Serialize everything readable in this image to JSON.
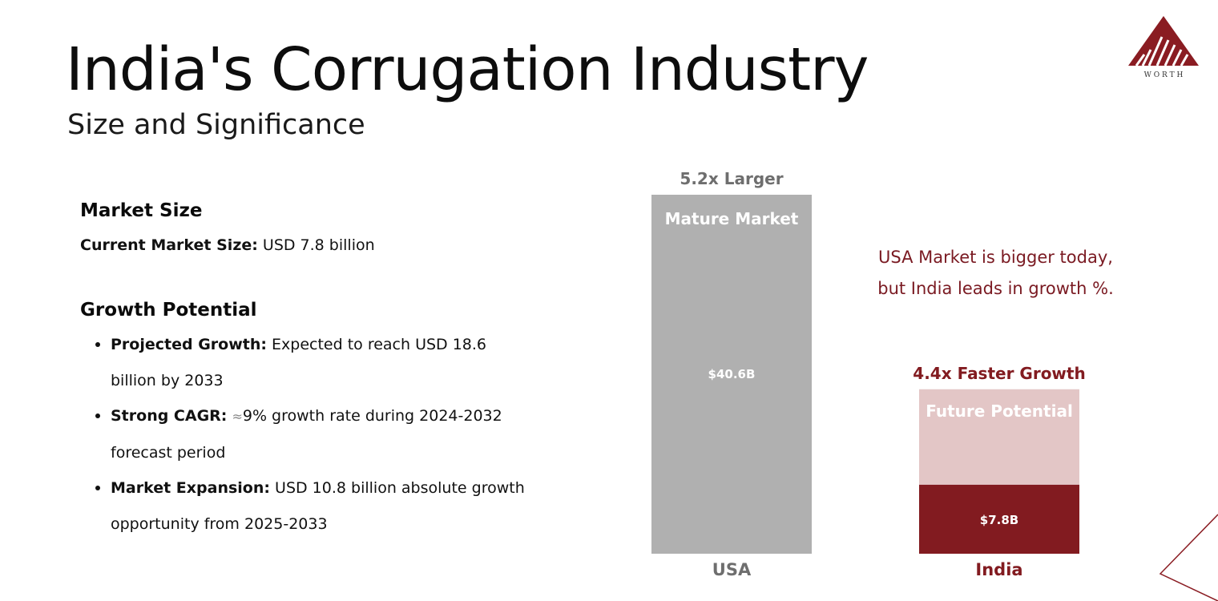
{
  "header": {
    "title": "India's Corrugation Industry",
    "subtitle": "Size and Significance",
    "logo_text": "W O R T H"
  },
  "market_size": {
    "heading": "Market Size",
    "current_label": "Current Market Size:",
    "current_value": " USD 7.8 billion"
  },
  "growth": {
    "heading": "Growth Potential",
    "items": [
      {
        "label": "Projected Growth:",
        "text": " Expected to reach USD 18.6 billion by 2033"
      },
      {
        "label": "Strong CAGR:",
        "symbol": "≈",
        "text": "9% growth rate during 2024-2032 forecast period"
      },
      {
        "label": "Market Expansion:",
        "text": " USD 10.8 billion absolute growth opportunity from 2025-2033"
      }
    ]
  },
  "note": {
    "line1": "USA Market is bigger today,",
    "line2": "but India leads in growth %."
  },
  "colors": {
    "usa_bar": "#b0b0b0",
    "india_bar": "#821b20",
    "future_bar": "#e3c6c6",
    "accent": "#7a1a22",
    "usa_label": "#6e6e6e"
  },
  "chart_data": {
    "type": "bar",
    "title": "",
    "xlabel": "",
    "ylabel": "",
    "categories": [
      "USA",
      "India"
    ],
    "series": [
      {
        "name": "Current Market Size (USD B)",
        "values": [
          40.6,
          7.8
        ],
        "value_labels": [
          "$40.6B",
          "$7.8B"
        ]
      },
      {
        "name": "Future Potential (USD B)",
        "values": [
          0,
          10.8
        ]
      }
    ],
    "segment_labels": [
      "Mature Market",
      "Future Potential"
    ],
    "top_annotations": [
      "5.2x Larger",
      "4.4x Faster Growth"
    ],
    "ylim": [
      0,
      40.6
    ],
    "grid": false,
    "legend": "none"
  }
}
